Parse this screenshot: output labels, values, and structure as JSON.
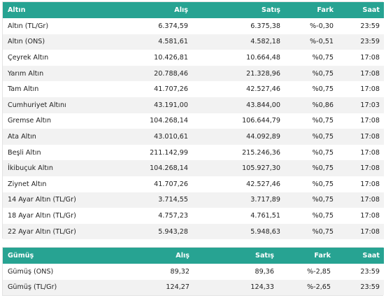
{
  "gold": {
    "headers": {
      "name": "Altın",
      "buy": "Alış",
      "sell": "Satış",
      "change": "Fark",
      "time": "Saat"
    },
    "rows": [
      {
        "name": "Altın (TL/Gr)",
        "buy": "6.374,59",
        "sell": "6.375,38",
        "change": "%-0,30",
        "time": "23:59"
      },
      {
        "name": "Altın (ONS)",
        "buy": "4.581,61",
        "sell": "4.582,18",
        "change": "%-0,51",
        "time": "23:59"
      },
      {
        "name": "Çeyrek Altın",
        "buy": "10.426,81",
        "sell": "10.664,48",
        "change": "%0,75",
        "time": "17:08"
      },
      {
        "name": "Yarım Altın",
        "buy": "20.788,46",
        "sell": "21.328,96",
        "change": "%0,75",
        "time": "17:08"
      },
      {
        "name": "Tam Altın",
        "buy": "41.707,26",
        "sell": "42.527,46",
        "change": "%0,75",
        "time": "17:08"
      },
      {
        "name": "Cumhuriyet Altını",
        "buy": "43.191,00",
        "sell": "43.844,00",
        "change": "%0,86",
        "time": "17:03"
      },
      {
        "name": "Gremse Altın",
        "buy": "104.268,14",
        "sell": "106.644,79",
        "change": "%0,75",
        "time": "17:08"
      },
      {
        "name": "Ata Altın",
        "buy": "43.010,61",
        "sell": "44.092,89",
        "change": "%0,75",
        "time": "17:08"
      },
      {
        "name": "Beşli Altın",
        "buy": "211.142,99",
        "sell": "215.246,36",
        "change": "%0,75",
        "time": "17:08"
      },
      {
        "name": "İkibuçuk Altın",
        "buy": "104.268,14",
        "sell": "105.927,30",
        "change": "%0,75",
        "time": "17:08"
      },
      {
        "name": "Ziynet Altın",
        "buy": "41.707,26",
        "sell": "42.527,46",
        "change": "%0,75",
        "time": "17:08"
      },
      {
        "name": "14 Ayar Altın (TL/Gr)",
        "buy": "3.714,55",
        "sell": "3.717,89",
        "change": "%0,75",
        "time": "17:08"
      },
      {
        "name": "18 Ayar Altın (TL/Gr)",
        "buy": "4.757,23",
        "sell": "4.761,51",
        "change": "%0,75",
        "time": "17:08"
      },
      {
        "name": "22 Ayar Altın (TL/Gr)",
        "buy": "5.943,28",
        "sell": "5.948,63",
        "change": "%0,75",
        "time": "17:08"
      }
    ]
  },
  "silver": {
    "headers": {
      "name": "Gümüş",
      "buy": "Alış",
      "sell": "Satış",
      "change": "Fark",
      "time": "Saat"
    },
    "rows": [
      {
        "name": "Gümüş (ONS)",
        "buy": "89,32",
        "sell": "89,36",
        "change": "%-2,85",
        "time": "23:59"
      },
      {
        "name": "Gümüş (TL/Gr)",
        "buy": "124,27",
        "sell": "124,33",
        "change": "%-2,65",
        "time": "23:59"
      }
    ]
  },
  "theme": {
    "header_bg": "#27a392",
    "header_text": "#ffffff",
    "stripe": "#f2f2f2"
  }
}
